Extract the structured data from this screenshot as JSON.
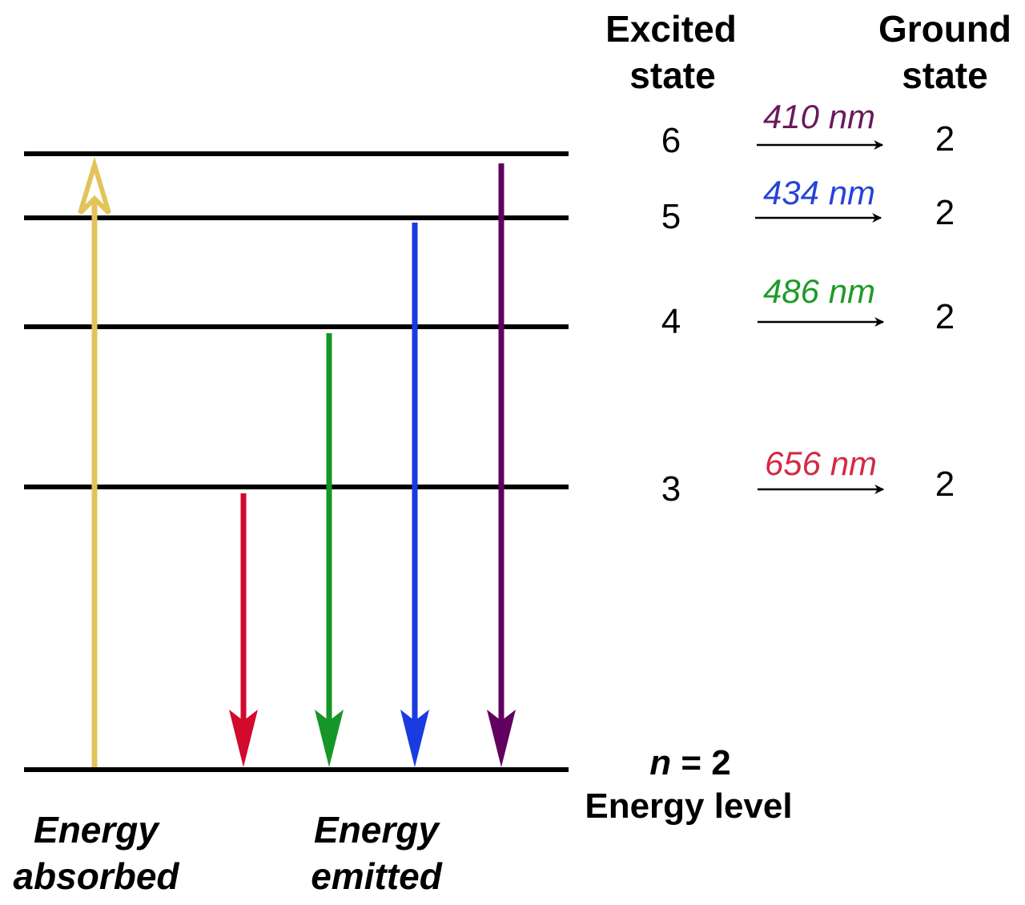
{
  "headers": {
    "excited": [
      "Excited",
      "state"
    ],
    "ground": [
      "Ground",
      "state"
    ]
  },
  "transitions": [
    {
      "excited_level": "6",
      "wavelength": "410 nm",
      "ground_level": "2",
      "color": "#6b1a5c"
    },
    {
      "excited_level": "5",
      "wavelength": "434 nm",
      "ground_level": "2",
      "color": "#2743d6"
    },
    {
      "excited_level": "4",
      "wavelength": "486 nm",
      "ground_level": "2",
      "color": "#1f9a2a"
    },
    {
      "excited_level": "3",
      "wavelength": "656 nm",
      "ground_level": "2",
      "color": "#d42a44"
    }
  ],
  "arrows": {
    "absorbed_color": "#e3c35a",
    "emitted_colors": [
      "#d10a2e",
      "#169626",
      "#1a3be0",
      "#62005f"
    ]
  },
  "bottom_level": {
    "n_symbol": "n",
    "n_value": " = 2",
    "label": "Energy level"
  },
  "captions": {
    "absorbed": [
      "Energy",
      "absorbed"
    ],
    "emitted": [
      "Energy",
      "emitted"
    ]
  }
}
